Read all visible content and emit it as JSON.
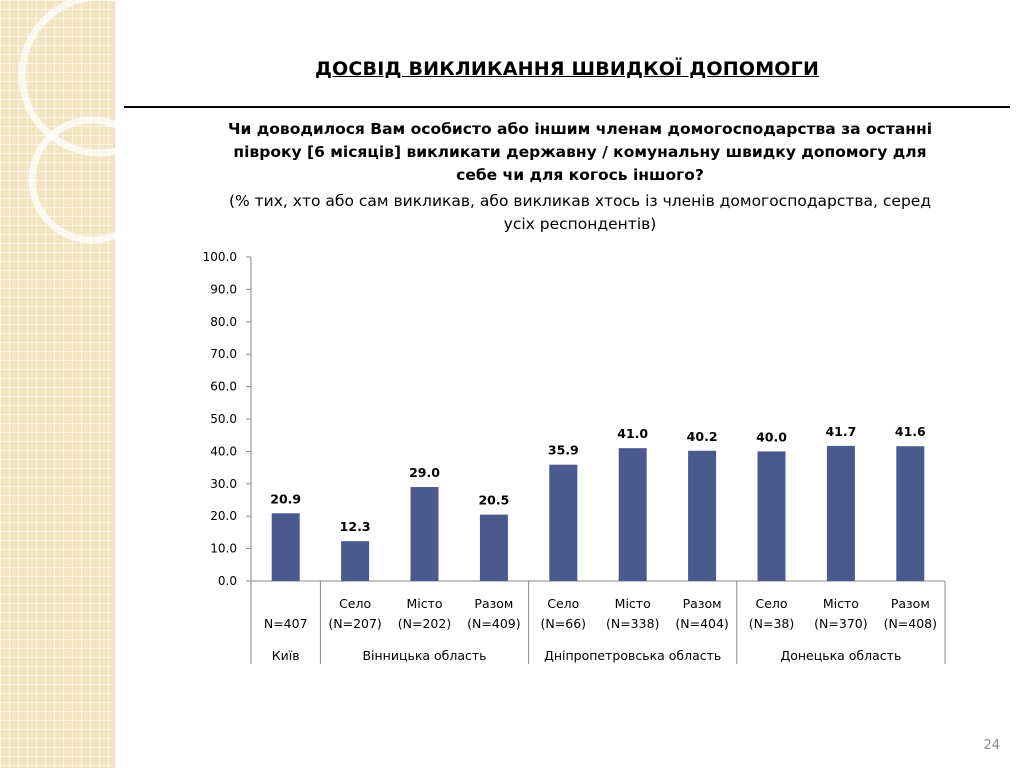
{
  "slide": {
    "title": "ДОСВІД ВИКЛИКАННЯ ШВИДКОЇ ДОПОМОГИ",
    "question": "Чи доводилося Вам особисто або іншим членам домогосподарства за останні півроку [6 місяців] викликати державну / комунальну швидку допомогу для себе чи для когось іншого?",
    "note": "(% тих, хто або сам викликав, або викликав хтось із членів домогосподарства, серед усіх респондентів)",
    "page_number": "24"
  },
  "colors": {
    "bar": "#4a5a8f",
    "side_panel": "#f3e4c2"
  },
  "chart_data": {
    "type": "bar",
    "title": "",
    "xlabel": "",
    "ylabel": "",
    "ylim": [
      0,
      100
    ],
    "yticks": [
      "0.0",
      "10.0",
      "20.0",
      "30.0",
      "40.0",
      "50.0",
      "60.0",
      "70.0",
      "80.0",
      "90.0",
      "100.0"
    ],
    "categories": [
      {
        "label": "",
        "n": "N=407",
        "group": "Київ"
      },
      {
        "label": "Село",
        "n": "(N=207)",
        "group": "Вінницька область"
      },
      {
        "label": "Місто",
        "n": "(N=202)",
        "group": "Вінницька область"
      },
      {
        "label": "Разом",
        "n": "(N=409)",
        "group": "Вінницька область"
      },
      {
        "label": "Село",
        "n": "(N=66)",
        "group": "Дніпропетровська область"
      },
      {
        "label": "Місто",
        "n": "(N=338)",
        "group": "Дніпропетровська область"
      },
      {
        "label": "Разом",
        "n": "(N=404)",
        "group": "Дніпропетровська область"
      },
      {
        "label": "Село",
        "n": "(N=38)",
        "group": "Донецька область"
      },
      {
        "label": "Місто",
        "n": "(N=370)",
        "group": "Донецька область"
      },
      {
        "label": "Разом",
        "n": "(N=408)",
        "group": "Донецька область"
      }
    ],
    "groups": [
      {
        "name": "Київ",
        "count": 1
      },
      {
        "name": "Вінницька область",
        "count": 3
      },
      {
        "name": "Дніпропетровська область",
        "count": 3
      },
      {
        "name": "Донецька область",
        "count": 3
      }
    ],
    "values": [
      20.9,
      12.3,
      29.0,
      20.5,
      35.9,
      41.0,
      40.2,
      40.0,
      41.7,
      41.6
    ],
    "value_labels": [
      "20.9",
      "12.3",
      "29.0",
      "20.5",
      "35.9",
      "41.0",
      "40.2",
      "40.0",
      "41.7",
      "41.6"
    ],
    "grid": false,
    "legend": "none"
  }
}
